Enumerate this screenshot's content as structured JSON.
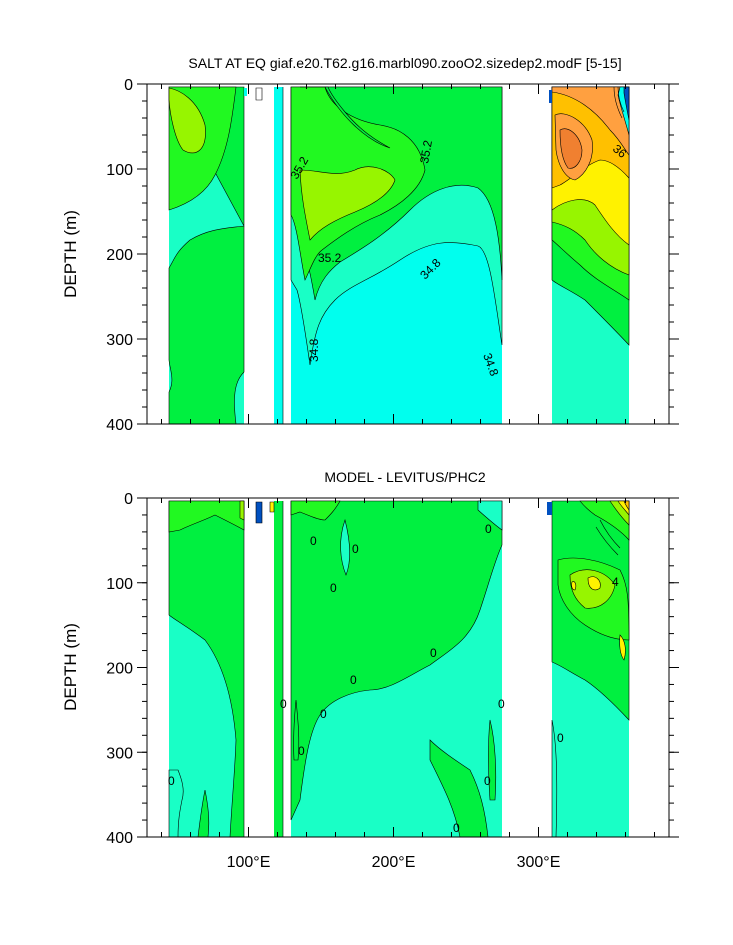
{
  "chart_data": [
    {
      "type": "contour",
      "title": "SALT AT EQ giaf.e20.T62.g16.marbl090.zooO2.sizedep2.modF [5-15]",
      "ylabel": "DEPTH (m)",
      "xlabel": "",
      "x_ticks": [
        {
          "value": 100,
          "label": "100°E"
        },
        {
          "value": 200,
          "label": "200°E"
        },
        {
          "value": 300,
          "label": "300°E"
        }
      ],
      "y_ticks": [
        0,
        100,
        200,
        300,
        400
      ],
      "xlim": [
        30,
        390
      ],
      "ylim": [
        0,
        400
      ],
      "y_reversed": true,
      "land_gaps_lon": [
        [
          97,
          119
        ],
        [
          125,
          131
        ],
        [
          278,
          313
        ]
      ],
      "colors": {
        "cyan": "#00ffee",
        "aqua": "#19ffc6",
        "green": "#00f040",
        "bright_green": "#21f921",
        "lime": "#97f500",
        "yellow": "#fff200",
        "gold": "#ffc000",
        "orange": "#ffa040",
        "dark_orange": "#f08030",
        "blue": "#0050c0"
      },
      "contour_labels": [
        "35.2",
        "35.2",
        "35.2",
        "34.8",
        "34.8",
        "34.8",
        "36"
      ]
    },
    {
      "type": "contour",
      "title": "MODEL - LEVITUS/PHC2",
      "ylabel": "DEPTH (m)",
      "xlabel": "",
      "x_ticks": [
        {
          "value": 100,
          "label": "100°E"
        },
        {
          "value": 200,
          "label": "200°E"
        },
        {
          "value": 300,
          "label": "300°E"
        }
      ],
      "y_ticks": [
        0,
        100,
        200,
        300,
        400
      ],
      "xlim": [
        30,
        390
      ],
      "ylim": [
        0,
        400
      ],
      "y_reversed": true,
      "land_gaps_lon": [
        [
          97,
          119
        ],
        [
          125,
          131
        ],
        [
          278,
          313
        ]
      ],
      "colors": {
        "aqua": "#19ffc6",
        "green": "#00f040",
        "lime": "#97f500",
        "yellow": "#fff200",
        "blue": "#0050c0"
      },
      "contour_labels": [
        "0",
        "0",
        "0",
        "0",
        "0",
        "0",
        "0",
        "0",
        "0",
        "0",
        "0",
        "0",
        "0",
        "0",
        "4"
      ]
    }
  ]
}
